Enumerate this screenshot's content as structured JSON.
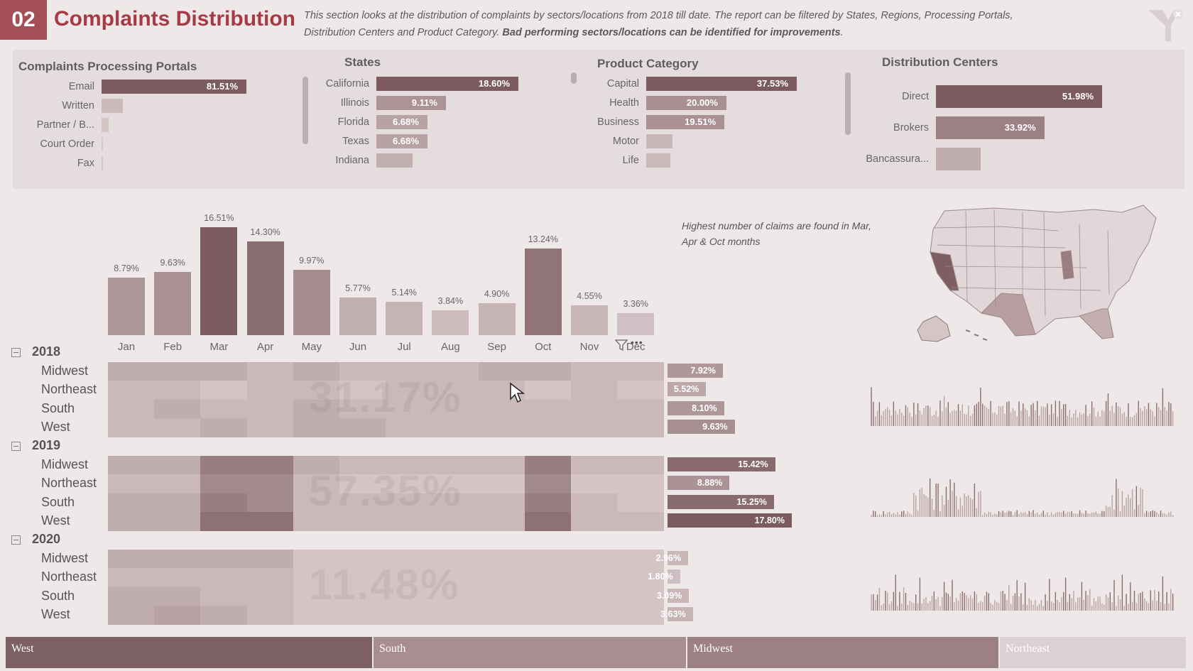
{
  "header": {
    "number": "02",
    "title": "Complaints Distribution",
    "desc_plain": "This section looks at the distribution of complaints by sectors/locations from 2018 till date.  The report can be filtered by States, Regions, Processing Portals, Distribution Centers and Product Category. ",
    "desc_bold": "Bad performing sectors/locations can be identified for improvements",
    "desc_end": "."
  },
  "portals": {
    "title": "Complaints Processing Portals",
    "items": [
      {
        "label": "Email",
        "value": "81.51%",
        "pct": 81.51
      },
      {
        "label": "Written",
        "value": "",
        "pct": 12
      },
      {
        "label": "Partner / B...",
        "value": "",
        "pct": 4
      },
      {
        "label": "Court Order",
        "value": "",
        "pct": 0.5
      },
      {
        "label": "Fax",
        "value": "",
        "pct": 0.2
      }
    ]
  },
  "states": {
    "title": "States",
    "items": [
      {
        "label": "California",
        "value": "18.60%",
        "pct": 18.6
      },
      {
        "label": "Illinois",
        "value": "9.11%",
        "pct": 9.11
      },
      {
        "label": "Florida",
        "value": "6.68%",
        "pct": 6.68
      },
      {
        "label": "Texas",
        "value": "6.68%",
        "pct": 6.68
      },
      {
        "label": "Indiana",
        "value": "",
        "pct": 4.7
      }
    ]
  },
  "product": {
    "title": "Product Category",
    "items": [
      {
        "label": "Capital",
        "value": "37.53%",
        "pct": 37.53
      },
      {
        "label": "Health",
        "value": "20.00%",
        "pct": 20.0
      },
      {
        "label": "Business",
        "value": "19.51%",
        "pct": 19.51
      },
      {
        "label": "Motor",
        "value": "",
        "pct": 6.5
      },
      {
        "label": "Life",
        "value": "",
        "pct": 6.0
      }
    ]
  },
  "distribution": {
    "title": "Distribution Centers",
    "items": [
      {
        "label": "Direct",
        "value": "51.98%",
        "pct": 51.98
      },
      {
        "label": "Brokers",
        "value": "33.92%",
        "pct": 33.92
      },
      {
        "label": "Bancassura...",
        "value": "",
        "pct": 14.1
      }
    ]
  },
  "chart_data": {
    "type": "bar",
    "categories": [
      "Jan",
      "Feb",
      "Mar",
      "Apr",
      "May",
      "Jun",
      "Jul",
      "Aug",
      "Sep",
      "Oct",
      "Nov",
      "Dec"
    ],
    "values": [
      8.79,
      9.63,
      16.51,
      14.3,
      9.97,
      5.77,
      5.14,
      3.84,
      4.9,
      13.24,
      4.55,
      3.36
    ],
    "labels": [
      "8.79%",
      "9.63%",
      "16.51%",
      "14.30%",
      "9.97%",
      "5.77%",
      "5.14%",
      "3.84%",
      "4.90%",
      "13.24%",
      "4.55%",
      "3.36%"
    ]
  },
  "note": "Highest number of claims are found in Mar, Apr & Oct months",
  "matrix": {
    "years": [
      {
        "year": "2018",
        "total": "31.17%",
        "regions": [
          {
            "name": "Midwest",
            "value": "7.92%",
            "pct": 7.92
          },
          {
            "name": "Northeast",
            "value": "5.52%",
            "pct": 5.52
          },
          {
            "name": "South",
            "value": "8.10%",
            "pct": 8.1
          },
          {
            "name": "West",
            "value": "9.63%",
            "pct": 9.63
          }
        ]
      },
      {
        "year": "2019",
        "total": "57.35%",
        "regions": [
          {
            "name": "Midwest",
            "value": "15.42%",
            "pct": 15.42
          },
          {
            "name": "Northeast",
            "value": "8.88%",
            "pct": 8.88
          },
          {
            "name": "South",
            "value": "15.25%",
            "pct": 15.25
          },
          {
            "name": "West",
            "value": "17.80%",
            "pct": 17.8
          }
        ]
      },
      {
        "year": "2020",
        "total": "11.48%",
        "regions": [
          {
            "name": "Midwest",
            "value": "2.96%",
            "pct": 2.96
          },
          {
            "name": "Northeast",
            "value": "1.80%",
            "pct": 1.8
          },
          {
            "name": "South",
            "value": "3.09%",
            "pct": 3.09
          },
          {
            "name": "West",
            "value": "3.63%",
            "pct": 3.63
          }
        ]
      }
    ]
  },
  "tiles": [
    {
      "label": "West",
      "color": "#7d6063"
    },
    {
      "label": "South",
      "color": "#a88e91"
    },
    {
      "label": "Midwest",
      "color": "#9c8083"
    },
    {
      "label": "Northeast",
      "color": "#ddd0d2"
    }
  ],
  "colors": {
    "accent": "#a44e55",
    "dark": "#6f4f53",
    "mid": "#a88a8d",
    "light": "#dccfd1"
  }
}
